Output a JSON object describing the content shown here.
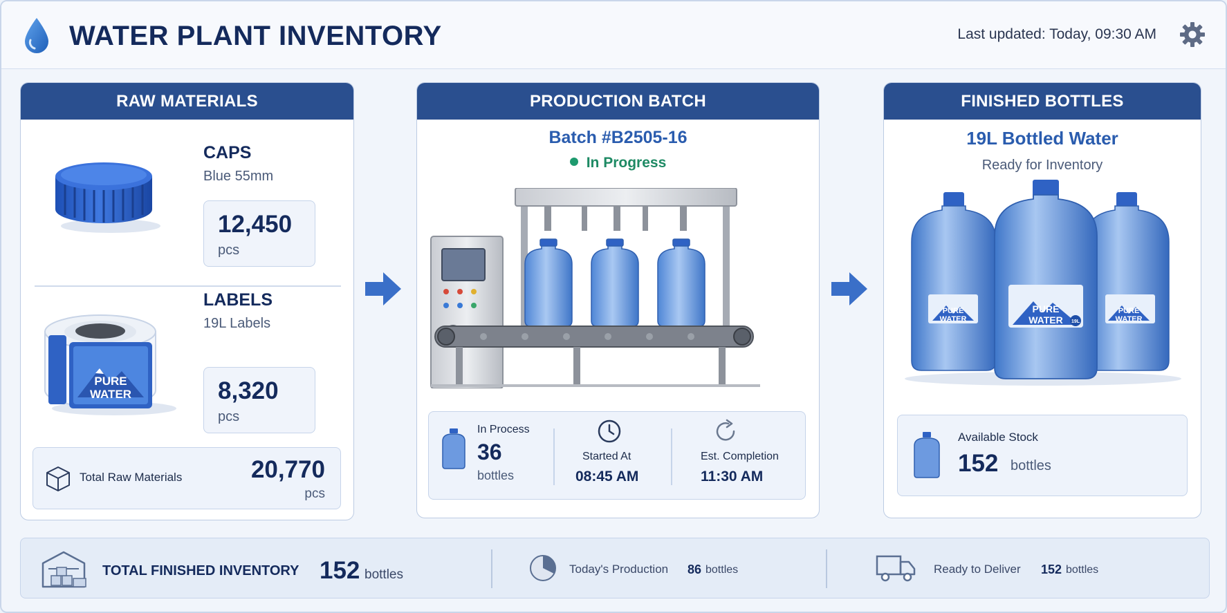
{
  "header": {
    "title": "WATER PLANT INVENTORY",
    "last_updated": "Last updated: Today, 09:30 AM",
    "icons": {
      "logo": "water-drop-icon",
      "settings": "gear-icon"
    }
  },
  "raw_materials": {
    "heading": "RAW MATERIALS",
    "items": [
      {
        "name": "CAPS",
        "subtitle": "Blue 55mm",
        "quantity": "12,450",
        "unit": "pcs",
        "icon": "bottle-cap-icon"
      },
      {
        "name": "LABELS",
        "subtitle": "19L Labels",
        "quantity": "8,320",
        "unit": "pcs",
        "icon": "label-roll-icon",
        "label_text": [
          "PURE",
          "WATER"
        ]
      }
    ],
    "total": {
      "label": "Total Raw Materials",
      "value": "20,770",
      "unit": "pcs",
      "icon": "box-icon"
    }
  },
  "production": {
    "heading": "PRODUCTION BATCH",
    "batch": "Batch #B2505-16",
    "status": "In Progress",
    "status_color": "#1e9a6e",
    "stats": [
      {
        "label": "In Process",
        "value": "36",
        "unit": "bottles",
        "icon": "water-jug-icon"
      },
      {
        "label": "Started At",
        "value": "08:45 AM",
        "icon": "clock-icon"
      },
      {
        "label": "Est. Completion",
        "value": "11:30 AM",
        "icon": "refresh-icon"
      }
    ]
  },
  "finished": {
    "heading": "FINISHED BOTTLES",
    "title": "19L Bottled Water",
    "subtitle": "Ready for Inventory",
    "jug_label": [
      "PURE",
      "WATER"
    ],
    "jug_badge": "19L",
    "stock": {
      "label": "Available Stock",
      "value": "152",
      "unit": "bottles",
      "icon": "water-jug-icon"
    }
  },
  "footer": {
    "total": {
      "label": "TOTAL FINISHED INVENTORY",
      "value": "152",
      "unit": "bottles",
      "icon": "warehouse-icon"
    },
    "today": {
      "label": "Today's Production",
      "value": "86",
      "unit": "bottles",
      "icon": "pie-chart-icon"
    },
    "deliver": {
      "label": "Ready to Deliver",
      "value": "152",
      "unit": "bottles",
      "icon": "truck-icon"
    }
  },
  "colors": {
    "primary": "#2a4f8f",
    "accent_blue": "#2a5cae",
    "bottle_blue": "#5a8fd8",
    "success": "#1e9a6e"
  }
}
